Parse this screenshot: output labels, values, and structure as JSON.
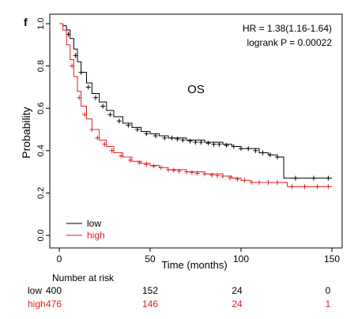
{
  "panel_label": "f",
  "chart_data": {
    "type": "line",
    "title": "OS",
    "xlabel": "Time (months)",
    "ylabel": "Probability",
    "xlim": [
      0,
      150
    ],
    "ylim": [
      0,
      1
    ],
    "x_ticks": [
      0,
      50,
      100,
      150
    ],
    "y_ticks": [
      0.0,
      0.2,
      0.4,
      0.6,
      0.8,
      1.0
    ],
    "grid": false,
    "legend_position": "bottom-left",
    "annotations": [
      "HR = 1.38(1.16-1.64)",
      "logrank P = 0.00022"
    ],
    "series": [
      {
        "name": "low",
        "color": "#000000",
        "points": [
          [
            0,
            1.0
          ],
          [
            2,
            0.99
          ],
          [
            4,
            0.97
          ],
          [
            6,
            0.93
          ],
          [
            8,
            0.88
          ],
          [
            10,
            0.82
          ],
          [
            12,
            0.77
          ],
          [
            15,
            0.72
          ],
          [
            18,
            0.67
          ],
          [
            22,
            0.63
          ],
          [
            26,
            0.59
          ],
          [
            30,
            0.56
          ],
          [
            35,
            0.53
          ],
          [
            40,
            0.51
          ],
          [
            45,
            0.49
          ],
          [
            50,
            0.48
          ],
          [
            55,
            0.47
          ],
          [
            60,
            0.46
          ],
          [
            70,
            0.45
          ],
          [
            80,
            0.44
          ],
          [
            90,
            0.43
          ],
          [
            95,
            0.42
          ],
          [
            100,
            0.41
          ],
          [
            105,
            0.41
          ],
          [
            110,
            0.39
          ],
          [
            115,
            0.38
          ],
          [
            120,
            0.37
          ],
          [
            123,
            0.37
          ],
          [
            123.5,
            0.27
          ],
          [
            150,
            0.27
          ]
        ],
        "censor_marks": [
          [
            5,
            0.95
          ],
          [
            9,
            0.85
          ],
          [
            12,
            0.77
          ],
          [
            16,
            0.7
          ],
          [
            20,
            0.65
          ],
          [
            24,
            0.61
          ],
          [
            28,
            0.57
          ],
          [
            33,
            0.54
          ],
          [
            38,
            0.52
          ],
          [
            43,
            0.5
          ],
          [
            48,
            0.48
          ],
          [
            53,
            0.47
          ],
          [
            58,
            0.46
          ],
          [
            62,
            0.46
          ],
          [
            65,
            0.455
          ],
          [
            68,
            0.45
          ],
          [
            72,
            0.445
          ],
          [
            75,
            0.44
          ],
          [
            78,
            0.44
          ],
          [
            82,
            0.435
          ],
          [
            85,
            0.43
          ],
          [
            88,
            0.43
          ],
          [
            92,
            0.425
          ],
          [
            96,
            0.42
          ],
          [
            100,
            0.41
          ],
          [
            104,
            0.41
          ],
          [
            108,
            0.4
          ],
          [
            112,
            0.39
          ],
          [
            116,
            0.38
          ],
          [
            120,
            0.37
          ],
          [
            130,
            0.27
          ],
          [
            140,
            0.27
          ],
          [
            148,
            0.27
          ]
        ]
      },
      {
        "name": "high",
        "color": "#e02020",
        "points": [
          [
            0,
            1.0
          ],
          [
            2,
            0.97
          ],
          [
            4,
            0.9
          ],
          [
            6,
            0.83
          ],
          [
            8,
            0.75
          ],
          [
            10,
            0.68
          ],
          [
            12,
            0.61
          ],
          [
            15,
            0.55
          ],
          [
            18,
            0.5
          ],
          [
            22,
            0.45
          ],
          [
            26,
            0.42
          ],
          [
            30,
            0.39
          ],
          [
            35,
            0.37
          ],
          [
            40,
            0.35
          ],
          [
            45,
            0.34
          ],
          [
            50,
            0.33
          ],
          [
            55,
            0.32
          ],
          [
            60,
            0.31
          ],
          [
            70,
            0.3
          ],
          [
            80,
            0.29
          ],
          [
            90,
            0.28
          ],
          [
            95,
            0.27
          ],
          [
            100,
            0.26
          ],
          [
            105,
            0.25
          ],
          [
            125,
            0.25
          ],
          [
            125.5,
            0.23
          ],
          [
            150,
            0.23
          ]
        ],
        "censor_marks": [
          [
            7,
            0.8
          ],
          [
            11,
            0.65
          ],
          [
            14,
            0.57
          ],
          [
            18,
            0.5
          ],
          [
            21,
            0.46
          ],
          [
            25,
            0.43
          ],
          [
            29,
            0.4
          ],
          [
            34,
            0.375
          ],
          [
            39,
            0.355
          ],
          [
            44,
            0.343
          ],
          [
            48,
            0.335
          ],
          [
            52,
            0.327
          ],
          [
            56,
            0.32
          ],
          [
            60,
            0.31
          ],
          [
            63,
            0.307
          ],
          [
            66,
            0.303
          ],
          [
            70,
            0.3
          ],
          [
            73,
            0.297
          ],
          [
            76,
            0.293
          ],
          [
            80,
            0.29
          ],
          [
            84,
            0.285
          ],
          [
            87,
            0.282
          ],
          [
            90,
            0.28
          ],
          [
            94,
            0.272
          ],
          [
            98,
            0.265
          ],
          [
            102,
            0.26
          ],
          [
            106,
            0.25
          ],
          [
            110,
            0.25
          ],
          [
            115,
            0.25
          ],
          [
            120,
            0.25
          ],
          [
            128,
            0.23
          ],
          [
            135,
            0.23
          ],
          [
            142,
            0.23
          ],
          [
            148,
            0.23
          ]
        ]
      }
    ],
    "risk_table": {
      "title": "Number at risk",
      "times": [
        0,
        50,
        100,
        150
      ],
      "rows": [
        {
          "label": "low",
          "color": "#000000",
          "counts": [
            "400",
            "152",
            "24",
            "0"
          ]
        },
        {
          "label": "high",
          "color": "#e02020",
          "counts": [
            "476",
            "146",
            "24",
            "1"
          ]
        }
      ]
    }
  }
}
